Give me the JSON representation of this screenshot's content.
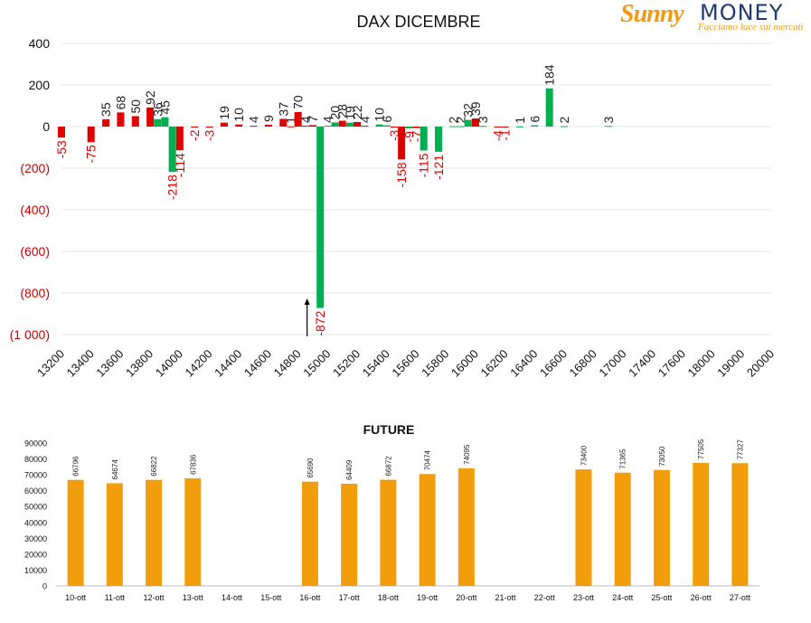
{
  "logo": {
    "part1": "Sunny",
    "part2": "MONEY",
    "tagline": "Facciamo luce sui mercati"
  },
  "colors": {
    "positive": "#00b050",
    "negative": "#e00000",
    "future_bar": "#f29e0c",
    "axis_text_negative": "#cc0000"
  },
  "chart_data": [
    {
      "type": "bar",
      "title": "DAX DICEMBRE",
      "xlabel": "",
      "ylabel": "",
      "ylim": [
        -1000,
        400
      ],
      "yticks": [
        "400",
        "200",
        "0",
        "(200)",
        "(400)",
        "(600)",
        "(800)",
        "(1 000)"
      ],
      "yticks_values": [
        400,
        200,
        0,
        -200,
        -400,
        -600,
        -800,
        -1000
      ],
      "categories": [
        "13200",
        "13400",
        "13600",
        "13800",
        "14000",
        "14200",
        "14400",
        "14600",
        "14800",
        "15000",
        "15200",
        "15400",
        "15600",
        "15800",
        "16000",
        "16200",
        "16400",
        "16600",
        "16800",
        "17000",
        "17400",
        "17600",
        "18000",
        "19000",
        "20000"
      ],
      "grid": true,
      "legend": "none",
      "annotations": [
        {
          "type": "arrow",
          "x": 14800,
          "direction": "up"
        }
      ],
      "series": [
        {
          "points": [
            {
              "x": 13200,
              "value": -53,
              "color": "negative"
            },
            {
              "x": 13400,
              "value": -75,
              "color": "negative"
            },
            {
              "x": 13500,
              "value": 35,
              "color": "negative"
            },
            {
              "x": 13600,
              "value": 68,
              "color": "negative"
            },
            {
              "x": 13700,
              "value": 50,
              "color": "negative"
            },
            {
              "x": 13800,
              "value": 92,
              "color": "negative"
            },
            {
              "x": 13850,
              "value": 36,
              "color": "positive"
            },
            {
              "x": 13900,
              "value": 45,
              "color": "positive"
            },
            {
              "x": 13950,
              "value": -218,
              "color": "positive"
            },
            {
              "x": 14000,
              "value": -114,
              "color": "negative"
            },
            {
              "x": 14100,
              "value": -2,
              "color": "negative"
            },
            {
              "x": 14200,
              "value": -3,
              "color": "negative"
            },
            {
              "x": 14300,
              "value": 19,
              "color": "negative"
            },
            {
              "x": 14400,
              "value": 10,
              "color": "negative"
            },
            {
              "x": 14500,
              "value": 4,
              "color": "negative"
            },
            {
              "x": 14600,
              "value": 9,
              "color": "negative"
            },
            {
              "x": 14700,
              "value": 37,
              "color": "negative"
            },
            {
              "x": 14750,
              "value": 1,
              "color": "negative"
            },
            {
              "x": 14800,
              "value": 70,
              "color": "negative"
            },
            {
              "x": 14850,
              "value": 4,
              "color": "negative"
            },
            {
              "x": 14900,
              "value": 7,
              "color": "negative"
            },
            {
              "x": 14950,
              "value": -872,
              "color": "positive"
            },
            {
              "x": 15000,
              "value": 4,
              "color": "positive"
            },
            {
              "x": 15050,
              "value": 20,
              "color": "positive"
            },
            {
              "x": 15100,
              "value": 28,
              "color": "negative"
            },
            {
              "x": 15150,
              "value": 19,
              "color": "positive"
            },
            {
              "x": 15200,
              "value": 22,
              "color": "negative"
            },
            {
              "x": 15250,
              "value": 4,
              "color": "negative"
            },
            {
              "x": 15350,
              "value": 10,
              "color": "positive"
            },
            {
              "x": 15400,
              "value": 6,
              "color": "positive"
            },
            {
              "x": 15450,
              "value": -3,
              "color": "negative"
            },
            {
              "x": 15500,
              "value": -158,
              "color": "negative"
            },
            {
              "x": 15550,
              "value": -9,
              "color": "positive"
            },
            {
              "x": 15600,
              "value": -7,
              "color": "negative"
            },
            {
              "x": 15650,
              "value": -115,
              "color": "positive"
            },
            {
              "x": 15750,
              "value": -121,
              "color": "positive"
            },
            {
              "x": 15850,
              "value": 2,
              "color": "positive"
            },
            {
              "x": 15900,
              "value": 2,
              "color": "positive"
            },
            {
              "x": 15950,
              "value": 32,
              "color": "positive"
            },
            {
              "x": 16000,
              "value": 39,
              "color": "negative"
            },
            {
              "x": 16050,
              "value": 3,
              "color": "positive"
            },
            {
              "x": 16150,
              "value": -4,
              "color": "negative"
            },
            {
              "x": 16200,
              "value": -1,
              "color": "negative"
            },
            {
              "x": 16300,
              "value": 1,
              "color": "positive"
            },
            {
              "x": 16400,
              "value": 6,
              "color": "positive"
            },
            {
              "x": 16500,
              "value": 184,
              "color": "positive"
            },
            {
              "x": 16600,
              "value": 2,
              "color": "positive"
            },
            {
              "x": 16900,
              "value": 3,
              "color": "positive"
            }
          ]
        }
      ]
    },
    {
      "type": "bar",
      "title": "FUTURE",
      "xlabel": "",
      "ylabel": "",
      "ylim": [
        0,
        90000
      ],
      "yticks": [
        "0",
        "10000",
        "20000",
        "30000",
        "40000",
        "50000",
        "60000",
        "70000",
        "80000",
        "90000"
      ],
      "yticks_values": [
        0,
        10000,
        20000,
        30000,
        40000,
        50000,
        60000,
        70000,
        80000,
        90000
      ],
      "categories": [
        "10-ott",
        "11-ott",
        "12-ott",
        "13-ott",
        "14-ott",
        "15-ott",
        "16-ott",
        "17-ott",
        "18-ott",
        "19-ott",
        "20-ott",
        "21-ott",
        "22-ott",
        "23-ott",
        "24-ott",
        "25-ott",
        "26-ott",
        "27-ott"
      ],
      "values": [
        66796,
        64674,
        66822,
        67836,
        null,
        null,
        65690,
        64409,
        66872,
        70474,
        74095,
        null,
        null,
        73400,
        71365,
        73050,
        77505,
        77327
      ],
      "labels": [
        "66796",
        "64674",
        "66822",
        "67836",
        "",
        "",
        "65690",
        "64409",
        "66872",
        "70474",
        "74095",
        "",
        "",
        "73400",
        "71365",
        "73050",
        "77505",
        "77327"
      ],
      "grid": false,
      "legend": "none"
    }
  ]
}
